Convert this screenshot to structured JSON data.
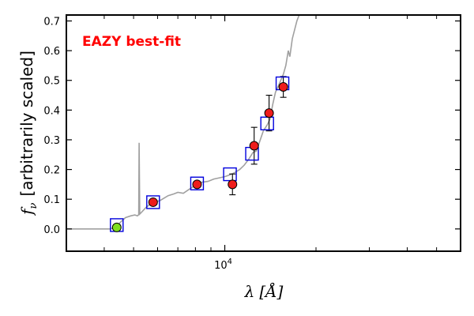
{
  "chart_data": {
    "type": "scatter",
    "annotation": "EAZY best-fit",
    "annotation_color": "#ff0000",
    "ylabel_symbol": "f",
    "ylabel_subscript": "ν",
    "ylabel_text": "[arbitrarily scaled]",
    "xlabel_symbol": "λ",
    "xlabel_unit": "[Å]",
    "xscale": "log",
    "xlim": [
      3000,
      60000
    ],
    "ylim": [
      -0.075,
      0.72
    ],
    "yticks": [
      {
        "value": 0.0,
        "label": "0.0"
      },
      {
        "value": 0.1,
        "label": "0.1"
      },
      {
        "value": 0.2,
        "label": "0.2"
      },
      {
        "value": 0.3,
        "label": "0.3"
      },
      {
        "value": 0.4,
        "label": "0.4"
      },
      {
        "value": 0.5,
        "label": "0.5"
      },
      {
        "value": 0.6,
        "label": "0.6"
      },
      {
        "value": 0.7,
        "label": "0.7"
      }
    ],
    "xtick_label": {
      "value": 10000,
      "base": "10",
      "exponent": "4"
    },
    "xticks_major": [
      10000
    ],
    "xticks_minor": [
      4000,
      5000,
      6000,
      7000,
      8000,
      9000,
      20000,
      30000,
      40000,
      50000
    ],
    "observed": [
      {
        "x": 4400,
        "y": 0.005,
        "yerr": 0.0,
        "color": "#80e020"
      },
      {
        "x": 5800,
        "y": 0.09,
        "yerr": 0.0,
        "color": "#ee1c1c"
      },
      {
        "x": 8100,
        "y": 0.15,
        "yerr": 0.0,
        "color": "#ee1c1c"
      },
      {
        "x": 10600,
        "y": 0.15,
        "yerr": 0.035,
        "color": "#ee1c1c"
      },
      {
        "x": 12500,
        "y": 0.28,
        "yerr": 0.062,
        "color": "#ee1c1c"
      },
      {
        "x": 14000,
        "y": 0.39,
        "yerr": 0.06,
        "color": "#ee1c1c"
      },
      {
        "x": 15600,
        "y": 0.478,
        "yerr": 0.035,
        "color": "#ee1c1c"
      }
    ],
    "model_photometry": [
      {
        "x": 4400,
        "y": 0.013
      },
      {
        "x": 5800,
        "y": 0.09
      },
      {
        "x": 8100,
        "y": 0.153
      },
      {
        "x": 10400,
        "y": 0.184
      },
      {
        "x": 12300,
        "y": 0.253
      },
      {
        "x": 13800,
        "y": 0.355
      },
      {
        "x": 15500,
        "y": 0.49
      }
    ],
    "model_marker_color": "#0000dd",
    "sed_color": "#a0a0a0",
    "sed_curve": [
      [
        3000,
        0.0
      ],
      [
        3500,
        0.0
      ],
      [
        3900,
        0.0
      ],
      [
        4200,
        0.0
      ],
      [
        4400,
        0.01
      ],
      [
        4550,
        0.025
      ],
      [
        4700,
        0.038
      ],
      [
        4900,
        0.044
      ],
      [
        5050,
        0.047
      ],
      [
        5150,
        0.044
      ],
      [
        5200,
        0.048
      ],
      [
        5215,
        0.29
      ],
      [
        5240,
        0.05
      ],
      [
        5300,
        0.055
      ],
      [
        5500,
        0.073
      ],
      [
        5800,
        0.09
      ],
      [
        6100,
        0.095
      ],
      [
        6500,
        0.112
      ],
      [
        6800,
        0.118
      ],
      [
        7000,
        0.123
      ],
      [
        7300,
        0.12
      ],
      [
        7600,
        0.132
      ],
      [
        8000,
        0.147
      ],
      [
        8400,
        0.157
      ],
      [
        8800,
        0.16
      ],
      [
        9200,
        0.168
      ],
      [
        9600,
        0.172
      ],
      [
        10000,
        0.176
      ],
      [
        10400,
        0.182
      ],
      [
        10800,
        0.19
      ],
      [
        11200,
        0.2
      ],
      [
        11600,
        0.215
      ],
      [
        12000,
        0.235
      ],
      [
        12400,
        0.258
      ],
      [
        12700,
        0.262
      ],
      [
        13000,
        0.29
      ],
      [
        13400,
        0.33
      ],
      [
        13800,
        0.35
      ],
      [
        14100,
        0.37
      ],
      [
        14400,
        0.42
      ],
      [
        14700,
        0.46
      ],
      [
        15000,
        0.48
      ],
      [
        15300,
        0.5
      ],
      [
        15600,
        0.52
      ],
      [
        15900,
        0.55
      ],
      [
        16200,
        0.6
      ],
      [
        16400,
        0.58
      ],
      [
        16700,
        0.64
      ],
      [
        17000,
        0.67
      ],
      [
        17300,
        0.7
      ],
      [
        17600,
        0.72
      ]
    ]
  }
}
